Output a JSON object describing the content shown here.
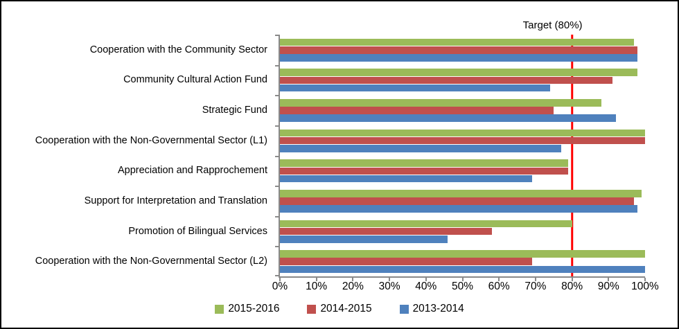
{
  "chart_data": {
    "type": "bar",
    "orientation": "horizontal",
    "title": "",
    "categories": [
      "Cooperation with the Community Sector",
      "Community Cultural Action Fund",
      "Strategic Fund",
      "Cooperation with the Non-Governmental Sector (L1)",
      "Appreciation and Rapprochement",
      "Support for Interpretation and Translation",
      "Promotion of Bilingual Services",
      "Cooperation with the Non-Governmental Sector (L2)"
    ],
    "series": [
      {
        "name": "2015-2016",
        "color": "#9BBB59",
        "values": [
          97,
          98,
          88,
          100,
          79,
          99,
          80,
          100
        ]
      },
      {
        "name": "2014-2015",
        "color": "#C0504D",
        "values": [
          98,
          91,
          75,
          100,
          79,
          97,
          58,
          69
        ]
      },
      {
        "name": "2013-2014",
        "color": "#4F81BD",
        "values": [
          98,
          74,
          92,
          77,
          69,
          98,
          46,
          100
        ]
      }
    ],
    "x_ticks": [
      "0%",
      "10%",
      "20%",
      "30%",
      "40%",
      "50%",
      "60%",
      "70%",
      "80%",
      "90%",
      "100%"
    ],
    "xlim": [
      0,
      100
    ],
    "value_unit": "%",
    "target": {
      "label": "Target (80%)",
      "value": 80,
      "color": "#FF0000"
    },
    "legend_position": "bottom",
    "grid": false
  }
}
